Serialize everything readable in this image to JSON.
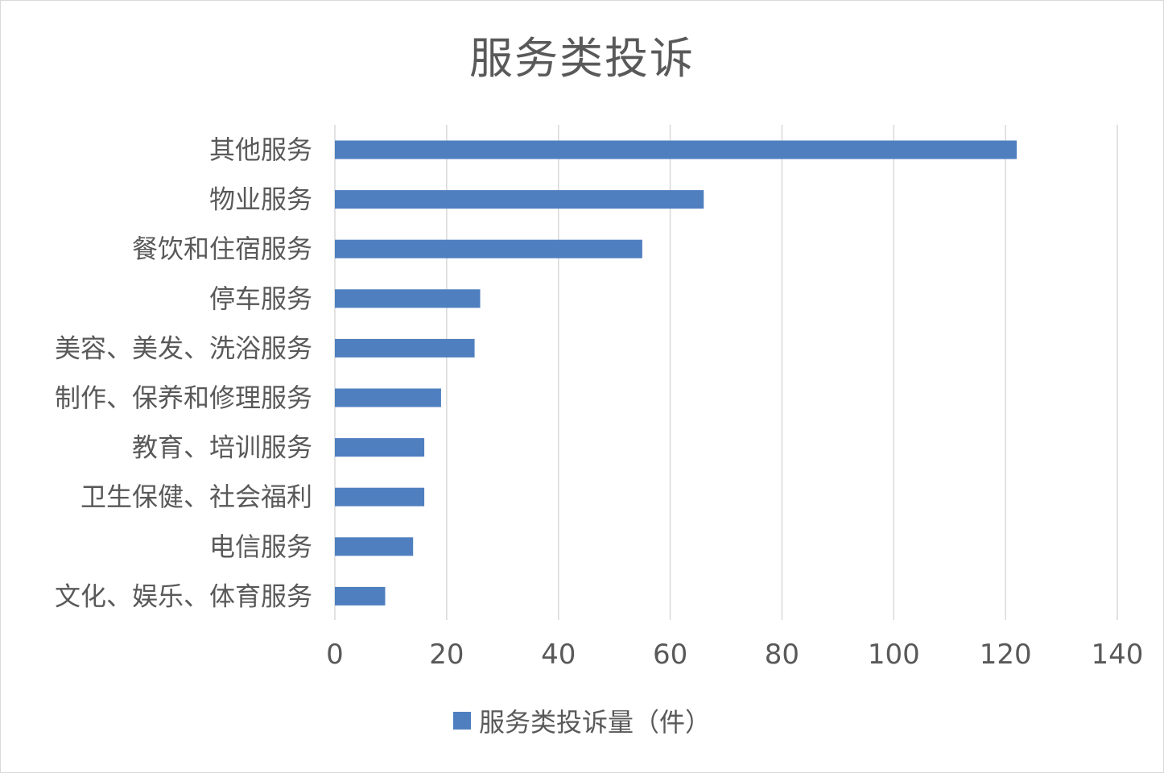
{
  "colors": {
    "bar": "#4f7fbf",
    "grid": "#d9d9d9",
    "text": "#595959"
  },
  "chart_data": {
    "type": "bar",
    "orientation": "horizontal",
    "title": "服务类投诉",
    "categories": [
      "其他服务",
      "物业服务",
      "餐饮和住宿服务",
      "停车服务",
      "美容、美发、洗浴服务",
      "制作、保养和修理服务",
      "教育、培训服务",
      "卫生保健、社会福利",
      "电信服务",
      "文化、娱乐、体育服务"
    ],
    "series": [
      {
        "name": "服务类投诉量（件）",
        "values": [
          122,
          66,
          55,
          26,
          25,
          19,
          16,
          16,
          14,
          9
        ]
      }
    ],
    "xlim": [
      0,
      140
    ],
    "xticks": [
      0,
      20,
      40,
      60,
      80,
      100,
      120,
      140
    ],
    "grid": "vertical",
    "legend": "bottom"
  }
}
